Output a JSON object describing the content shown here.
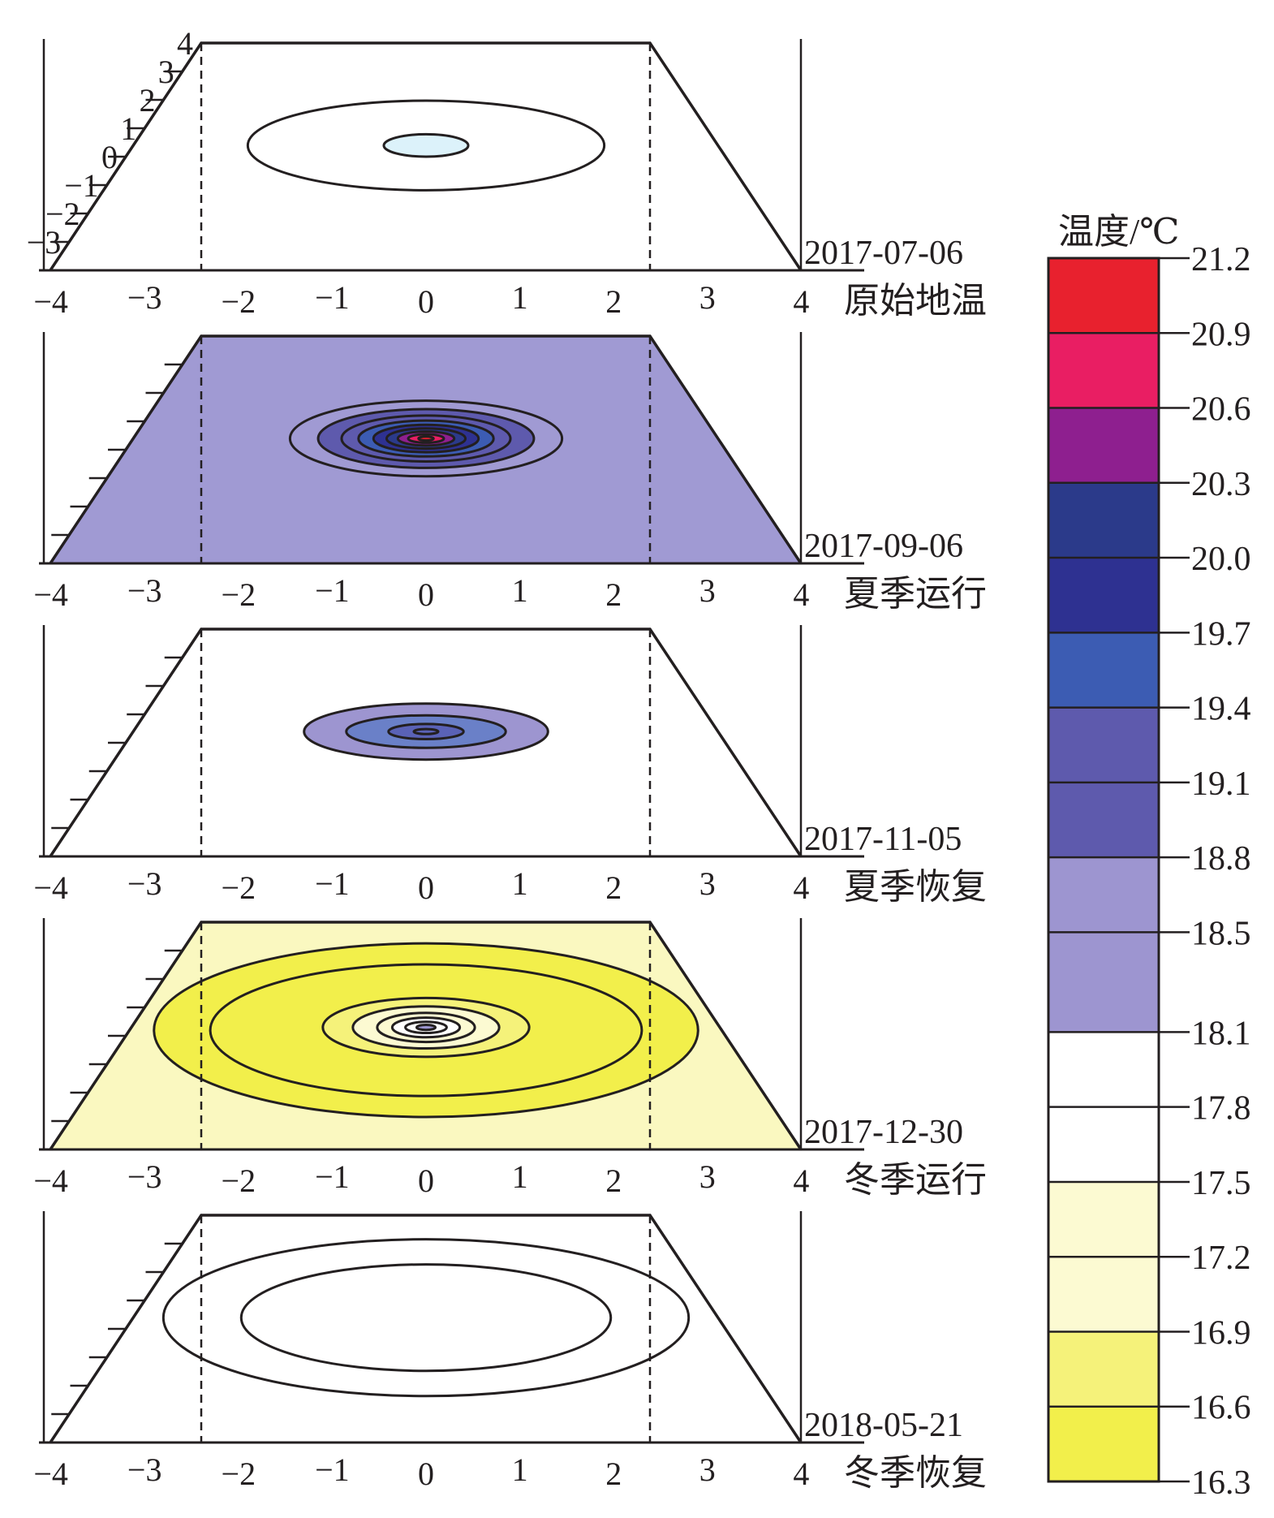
{
  "chart_data": {
    "type": "contour",
    "x_ticks": [
      "−4",
      "−3",
      "−2",
      "−1",
      "0",
      "1",
      "2",
      "3",
      "4"
    ],
    "y_ticks": [
      "−3",
      "−2",
      "−1",
      "0",
      "1",
      "2",
      "3",
      "4"
    ],
    "xlim": [
      -4,
      4
    ],
    "ylim": [
      -4,
      4
    ],
    "colorbar": {
      "title": "温度/℃",
      "labels": [
        "21.2",
        "20.9",
        "20.6",
        "20.3",
        "20.0",
        "19.7",
        "19.4",
        "19.1",
        "18.8",
        "18.5",
        "18.1",
        "17.8",
        "17.5",
        "17.2",
        "16.9",
        "16.6",
        "16.3"
      ],
      "bands": [
        {
          "from": 20.9,
          "to": 21.2,
          "color": "#e8212e"
        },
        {
          "from": 20.6,
          "to": 20.9,
          "color": "#e91e63"
        },
        {
          "from": 20.3,
          "to": 20.6,
          "color": "#8e1f8f"
        },
        {
          "from": 20.0,
          "to": 20.3,
          "color": "#2b3a8a"
        },
        {
          "from": 19.7,
          "to": 20.0,
          "color": "#2e3191"
        },
        {
          "from": 19.4,
          "to": 19.7,
          "color": "#3c5cb3"
        },
        {
          "from": 19.1,
          "to": 19.4,
          "color": "#5e5aad"
        },
        {
          "from": 18.8,
          "to": 19.1,
          "color": "#5e5aad"
        },
        {
          "from": 18.5,
          "to": 18.8,
          "color": "#9d95d0"
        },
        {
          "from": 18.1,
          "to": 18.5,
          "color": "#9d95d0"
        },
        {
          "from": 17.8,
          "to": 18.1,
          "color": "#ffffff"
        },
        {
          "from": 17.5,
          "to": 17.8,
          "color": "#ffffff"
        },
        {
          "from": 17.2,
          "to": 17.5,
          "color": "#fcfad2"
        },
        {
          "from": 16.9,
          "to": 17.2,
          "color": "#fcfad2"
        },
        {
          "from": 16.6,
          "to": 16.9,
          "color": "#f5f27a"
        },
        {
          "from": 16.3,
          "to": 16.6,
          "color": "#f2ef4b"
        }
      ]
    },
    "panels": [
      {
        "date": "2017-07-06",
        "phase": "原始地温",
        "background": "#ffffff",
        "ellipses": [
          {
            "cx": 0,
            "cy": 0.4,
            "rx": 1.9,
            "ry": 1.6,
            "fill": "#ffffff"
          },
          {
            "cx": 0,
            "cy": 0.4,
            "rx": 0.45,
            "ry": 0.4,
            "fill": "#dcf2fa"
          }
        ]
      },
      {
        "date": "2017-09-06",
        "phase": "夏季运行",
        "background": "#a09ad3",
        "ellipses": [
          {
            "cx": 0,
            "cy": 0.4,
            "rx": 1.45,
            "ry": 1.35,
            "fill": "#a09ad3"
          },
          {
            "cx": 0,
            "cy": 0.4,
            "rx": 1.15,
            "ry": 1.05,
            "fill": "#5e5aad"
          },
          {
            "cx": 0,
            "cy": 0.4,
            "rx": 0.9,
            "ry": 0.82,
            "fill": "#5e5aad"
          },
          {
            "cx": 0,
            "cy": 0.4,
            "rx": 0.72,
            "ry": 0.64,
            "fill": "#3c5cb3"
          },
          {
            "cx": 0,
            "cy": 0.4,
            "rx": 0.56,
            "ry": 0.49,
            "fill": "#2e3191"
          },
          {
            "cx": 0,
            "cy": 0.4,
            "rx": 0.42,
            "ry": 0.36,
            "fill": "#2b3a8a"
          },
          {
            "cx": 0,
            "cy": 0.4,
            "rx": 0.3,
            "ry": 0.25,
            "fill": "#8e1f8f"
          },
          {
            "cx": 0,
            "cy": 0.4,
            "rx": 0.19,
            "ry": 0.15,
            "fill": "#e91e63"
          },
          {
            "cx": 0,
            "cy": 0.4,
            "rx": 0.08,
            "ry": 0.07,
            "fill": "#e8212e"
          }
        ]
      },
      {
        "date": "2017-11-05",
        "phase": "夏季恢复",
        "background": "#ffffff",
        "ellipses": [
          {
            "cx": 0,
            "cy": 0.4,
            "rx": 1.3,
            "ry": 1.0,
            "fill": "#9d95d0"
          },
          {
            "cx": 0,
            "cy": 0.4,
            "rx": 0.85,
            "ry": 0.58,
            "fill": "#6a80c8"
          },
          {
            "cx": 0,
            "cy": 0.4,
            "rx": 0.4,
            "ry": 0.27,
            "fill": "#5a62b6"
          },
          {
            "cx": 0,
            "cy": 0.4,
            "rx": 0.13,
            "ry": 0.09,
            "fill": "#5a62b6"
          }
        ]
      },
      {
        "date": "2017-12-30",
        "phase": "冬季运行",
        "background": "#faf8c0",
        "ellipses": [
          {
            "cx": 0,
            "cy": 0.2,
            "rx": 2.9,
            "ry": 3.1,
            "fill": "#f2ef4b"
          },
          {
            "cx": 0,
            "cy": 0.2,
            "rx": 2.3,
            "ry": 2.35,
            "fill": "#f2ef4b"
          },
          {
            "cx": 0,
            "cy": 0.3,
            "rx": 1.1,
            "ry": 1.05,
            "fill": "#f5f27a"
          },
          {
            "cx": 0,
            "cy": 0.3,
            "rx": 0.78,
            "ry": 0.75,
            "fill": "#fcfad2"
          },
          {
            "cx": 0,
            "cy": 0.3,
            "rx": 0.52,
            "ry": 0.52,
            "fill": "#fcfad2"
          },
          {
            "cx": 0,
            "cy": 0.3,
            "rx": 0.36,
            "ry": 0.35,
            "fill": "#ffffff"
          },
          {
            "cx": 0,
            "cy": 0.3,
            "rx": 0.22,
            "ry": 0.2,
            "fill": "#ffffff"
          },
          {
            "cx": 0,
            "cy": 0.3,
            "rx": 0.1,
            "ry": 0.09,
            "fill": "#9d95d0"
          }
        ]
      },
      {
        "date": "2018-05-21",
        "phase": "冬季恢复",
        "background": "#ffffff",
        "ellipses": [
          {
            "cx": 0,
            "cy": 0.4,
            "rx": 2.8,
            "ry": 2.8,
            "fill": "#ffffff"
          },
          {
            "cx": 0,
            "cy": 0.4,
            "rx": 1.97,
            "ry": 1.9,
            "fill": "#ffffff"
          }
        ]
      }
    ]
  }
}
